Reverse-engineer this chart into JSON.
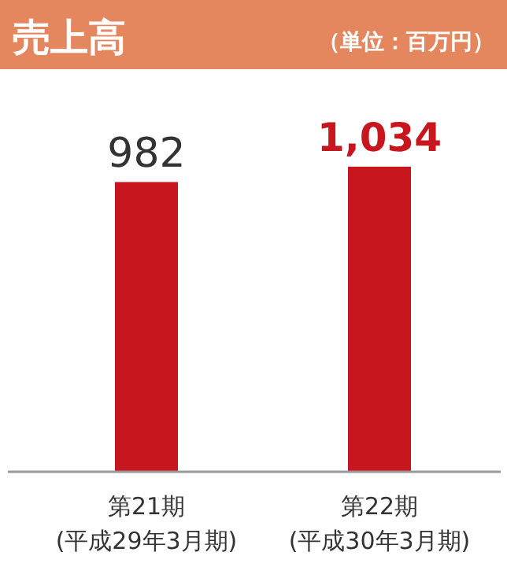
{
  "chart_data": {
    "type": "bar",
    "title": "売上高",
    "subtitle": "（単位：百万円）",
    "categories": [
      "第21期\n(平成29年3月期)",
      "第22期\n(平成30年3月期)"
    ],
    "values": [
      982,
      1034
    ],
    "color": "#c8161e",
    "value_labels": [
      "982",
      "**1,034**"
    ]
  }
}
